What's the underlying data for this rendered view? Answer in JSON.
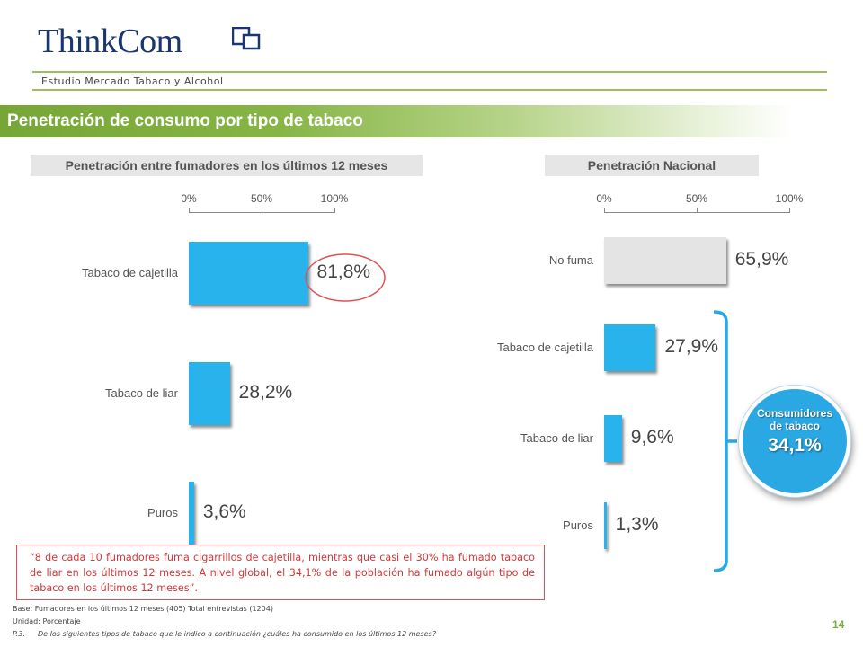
{
  "header": {
    "logo_text": "ThinkCom",
    "study": "Estudio Mercado Tabaco y Alcohol",
    "banner_title": "Penetración de consumo por tipo de tabaco",
    "page_number": "14"
  },
  "colors": {
    "bar_blue": "#29b3ec",
    "bar_grey": "#e4e4e4",
    "green": "#7bad3c",
    "highlight_red": "#d23838",
    "circle_blue": "#2aa8e4"
  },
  "chart_data": [
    {
      "type": "bar",
      "orientation": "horizontal",
      "title": "Penetración entre fumadores en los últimos 12 meses",
      "axis_ticks": [
        "0%",
        "50%",
        "100%"
      ],
      "xlim": [
        0,
        100
      ],
      "categories": [
        "Tabaco de cajetilla",
        "Tabaco de liar",
        "Puros"
      ],
      "values": [
        81.8,
        28.2,
        3.6
      ],
      "value_labels": [
        "81,8%",
        "28,2%",
        "3,6%"
      ],
      "highlighted": "81,8%"
    },
    {
      "type": "bar",
      "orientation": "horizontal",
      "title": "Penetración Nacional",
      "axis_ticks": [
        "0%",
        "50%",
        "100%"
      ],
      "xlim": [
        0,
        100
      ],
      "categories": [
        "No fuma",
        "Tabaco de cajetilla",
        "Tabaco de liar",
        "Puros"
      ],
      "values": [
        65.9,
        27.9,
        9.6,
        1.3
      ],
      "value_labels": [
        "65,9%",
        "27,9%",
        "9,6%",
        "1,3%"
      ],
      "bar_colors": [
        "#e4e4e4",
        "#29b3ec",
        "#29b3ec",
        "#29b3ec"
      ],
      "bracket_summary": {
        "label_line1": "Consumidores",
        "label_line2": "de tabaco",
        "value": "34,1%"
      }
    }
  ],
  "quote": {
    "open_mark": "“",
    "text": "8 de cada 10 fumadores fuma cigarrillos de cajetilla, mientras que casi el 30% ha fumado tabaco de liar en los últimos 12 meses. A nivel global, el 34,1% de la población ha fumado algún tipo de tabaco en los últimos 12 meses",
    "close_mark": "”."
  },
  "footnotes": {
    "base": "Base: Fumadores en los últimos 12 meses (405) Total entrevistas (1204)",
    "unit": "Unidad: Porcentaje",
    "question_num": "P.3.",
    "question": "De los siguientes tipos de tabaco que le indico a continuación ¿cuáles ha consumido en los últimos 12 meses?"
  }
}
